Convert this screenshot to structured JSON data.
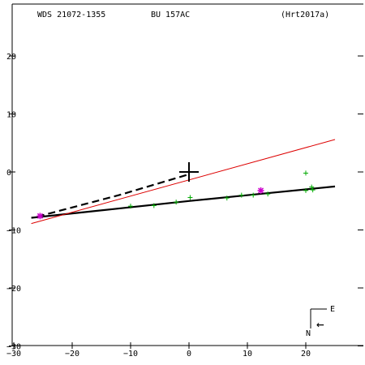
{
  "header": {
    "star_id": "WDS 21072-1355",
    "discoverer": "BU  157AC",
    "reference": "(Hrt2017a)"
  },
  "compass": {
    "east": "E",
    "north": "N",
    "arrow": "←"
  },
  "chart_data": {
    "type": "scatter",
    "title": "",
    "xlabel": "",
    "ylabel": "",
    "xlim": [
      -30,
      30
    ],
    "ylim": [
      -30,
      30
    ],
    "x_ticks": [
      -30,
      -20,
      -10,
      0,
      10,
      20
    ],
    "x_tick_labels": [
      "−30",
      "−20",
      "−10",
      "0",
      "10",
      "20"
    ],
    "y_ticks": [
      20,
      10,
      0,
      -10,
      -20,
      -30
    ],
    "y_tick_labels": [
      "20",
      "10",
      "0",
      "−10",
      "−20",
      "−30"
    ],
    "grid": false,
    "primary_origin": [
      0,
      0
    ],
    "colors": {
      "axes": "#000000",
      "fit_orbit": "#000000",
      "linear_fit": "#dd0000",
      "measures": "#00aa00",
      "highlight": "#cc00cc"
    },
    "series": [
      {
        "kind": "line",
        "style": "solid",
        "color": "#000000",
        "points": [
          [
            -27,
            -7.9
          ],
          [
            -13,
            -6.4
          ],
          [
            0,
            -5.0
          ],
          [
            12,
            -3.8
          ],
          [
            25,
            -2.5
          ]
        ]
      },
      {
        "kind": "line",
        "style": "solid",
        "color": "#dd0000",
        "points": [
          [
            -27,
            -8.9
          ],
          [
            25,
            5.6
          ]
        ]
      },
      {
        "kind": "line",
        "style": "dashed",
        "color": "#000000",
        "points": [
          [
            -26,
            -7.7
          ],
          [
            -12,
            -4.0
          ],
          [
            0,
            -0.4
          ]
        ]
      },
      {
        "kind": "points",
        "marker": "+",
        "color": "#00aa00",
        "points": [
          [
            -10,
            -5.9
          ],
          [
            -6,
            -5.8
          ],
          [
            -2.2,
            -5.2
          ],
          [
            0.2,
            -4.4
          ],
          [
            6.5,
            -4.5
          ],
          [
            9,
            -4.0
          ],
          [
            11,
            -4.0
          ],
          [
            13.5,
            -3.8
          ],
          [
            20,
            -0.2
          ],
          [
            20,
            -3.2
          ],
          [
            21,
            -2.6
          ],
          [
            21.2,
            -3.1
          ]
        ]
      },
      {
        "kind": "points",
        "marker": "*",
        "color": "#cc00cc",
        "points": [
          [
            -25.5,
            -7.6
          ],
          [
            12.3,
            -3.2
          ]
        ]
      }
    ]
  }
}
